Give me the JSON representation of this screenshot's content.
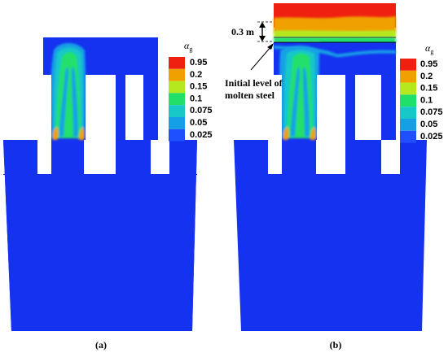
{
  "colors": {
    "background_phase": "#1432f0",
    "levels": [
      "#1e50ff",
      "#15a0e6",
      "#18c8c8",
      "#21e06a",
      "#b5e81e",
      "#f0a000",
      "#f02010"
    ],
    "surface_line": "#000000"
  },
  "panel_a": {
    "caption": "(a)",
    "legend": {
      "symbol": "α",
      "subscript": "g",
      "ticks": [
        "0.95",
        "0.2",
        "0.15",
        "0.1",
        "0.075",
        "0.05",
        "0.025"
      ]
    }
  },
  "panel_b": {
    "caption": "(b)",
    "dimension_label": "0.3 m",
    "annotation_line1": "Initial level of",
    "annotation_line2": "molten steel",
    "legend": {
      "symbol": "α",
      "subscript": "g",
      "ticks": [
        "0.95",
        "0.2",
        "0.15",
        "0.1",
        "0.075",
        "0.05",
        "0.025"
      ]
    }
  }
}
